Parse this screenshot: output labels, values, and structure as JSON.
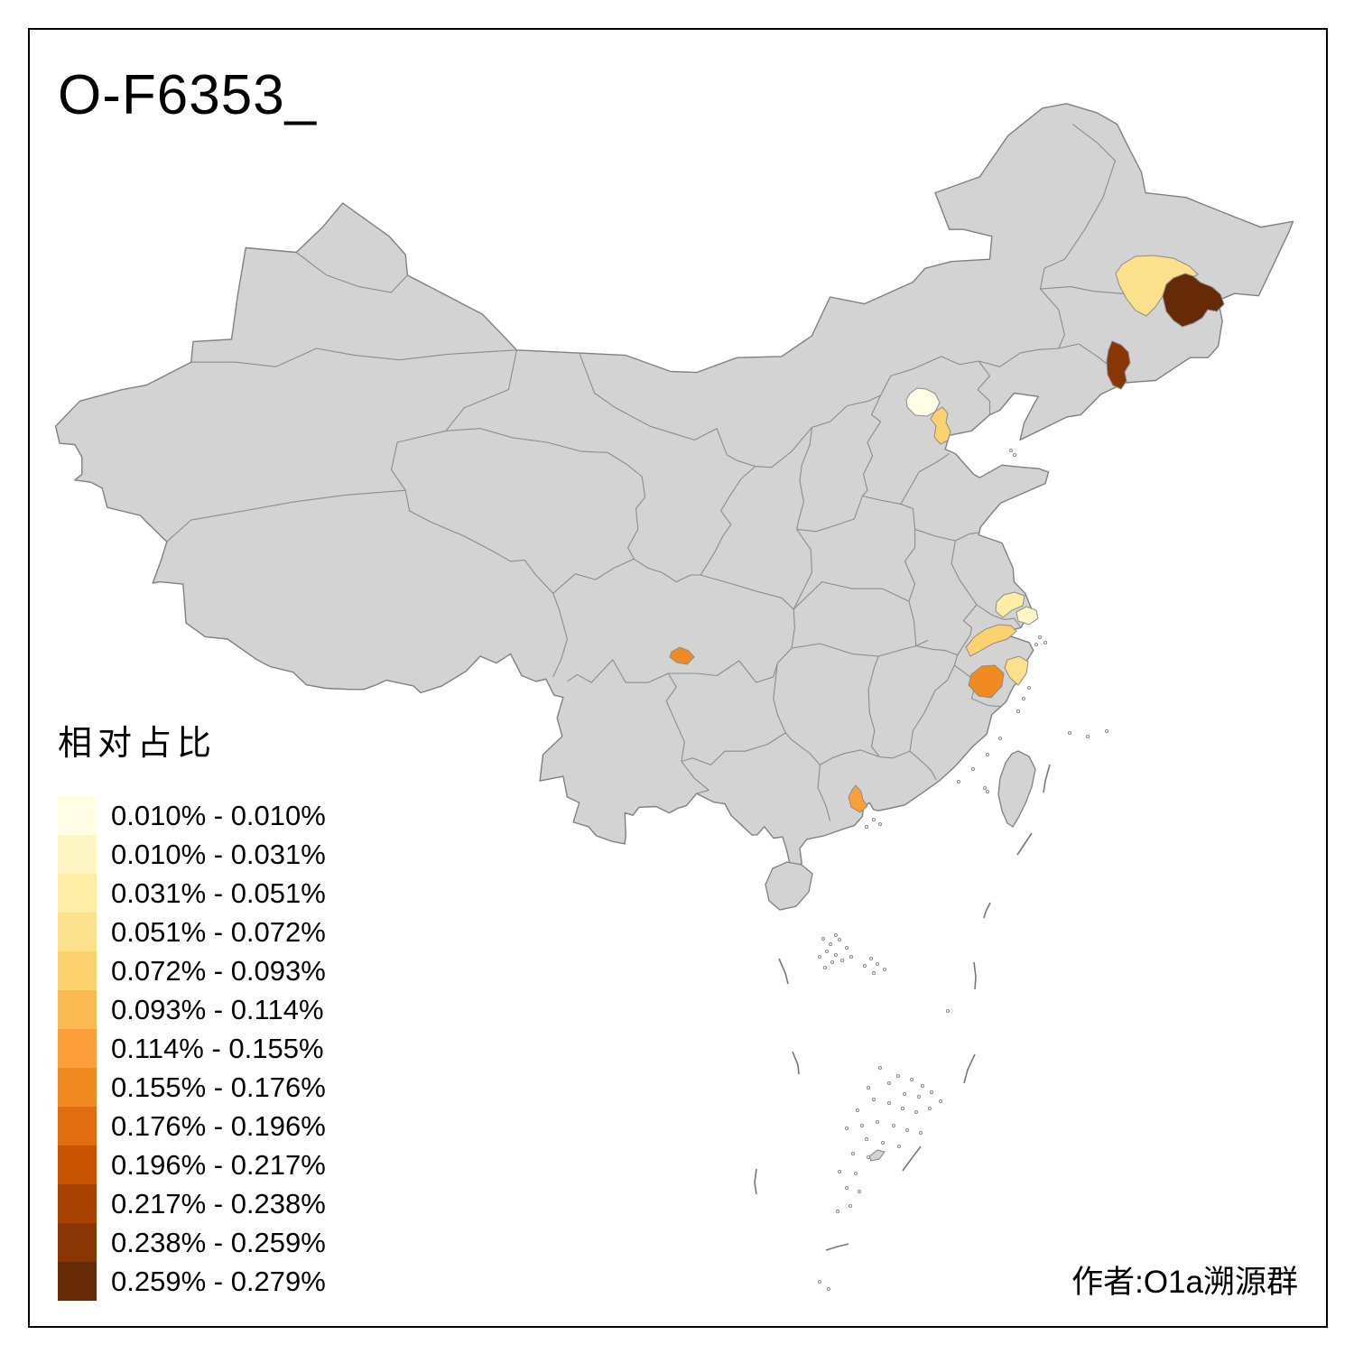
{
  "title": "O-F6353_",
  "attribution": "作者:O1a溯源群",
  "legend": {
    "title": "相对占比",
    "items": [
      {
        "label": "0.010% - 0.010%",
        "color": "#FFFDE3"
      },
      {
        "label": "0.010% - 0.031%",
        "color": "#FFF6C6"
      },
      {
        "label": "0.031% - 0.051%",
        "color": "#FEEDA4"
      },
      {
        "label": "0.051% - 0.072%",
        "color": "#FCE18C"
      },
      {
        "label": "0.072% - 0.093%",
        "color": "#FCD26E"
      },
      {
        "label": "0.093% - 0.114%",
        "color": "#FCBB52"
      },
      {
        "label": "0.114% - 0.155%",
        "color": "#FC9F3B"
      },
      {
        "label": "0.155% - 0.176%",
        "color": "#F28A22"
      },
      {
        "label": "0.176% - 0.196%",
        "color": "#E06E10"
      },
      {
        "label": "0.196% - 0.217%",
        "color": "#C95502"
      },
      {
        "label": "0.217% - 0.238%",
        "color": "#A84203"
      },
      {
        "label": "0.238% - 0.259%",
        "color": "#8A3504"
      },
      {
        "label": "0.259% - 0.279%",
        "color": "#672A06"
      }
    ]
  },
  "map": {
    "colors": {
      "land_fill": "#D3D3D3",
      "coast_stroke": "#808080",
      "interior_stroke": "#8C8C8C",
      "sea_fill": "#FFFFFF",
      "frame_color": "#000000"
    },
    "regions": [
      {
        "id": "beijing",
        "color": "#FFFDE3",
        "value_range": "0.010% - 0.010%"
      },
      {
        "id": "shanghai-area",
        "color": "#FFF6C6",
        "value_range": "0.010% - 0.031%"
      },
      {
        "id": "jiangsu-coastal",
        "color": "#FEEDA4",
        "value_range": "0.031% - 0.051%"
      },
      {
        "id": "heilongjiang-central",
        "color": "#FCE18C",
        "value_range": "0.051% - 0.072%"
      },
      {
        "id": "zhejiang-east",
        "color": "#FCE18C",
        "value_range": "0.051% - 0.072%"
      },
      {
        "id": "tianjin",
        "color": "#FCD26E",
        "value_range": "0.072% - 0.093%"
      },
      {
        "id": "zhejiang-north",
        "color": "#FCD26E",
        "value_range": "0.072% - 0.093%"
      },
      {
        "id": "guangdong-central",
        "color": "#FC9F3B",
        "value_range": "0.114% - 0.155%"
      },
      {
        "id": "sichuan-south",
        "color": "#F28A22",
        "value_range": "0.155% - 0.176%"
      },
      {
        "id": "zhejiang-central",
        "color": "#F28A22",
        "value_range": "0.155% - 0.176%"
      },
      {
        "id": "jilin-east",
        "color": "#8A3504",
        "value_range": "0.238% - 0.259%"
      },
      {
        "id": "heilongjiang-east",
        "color": "#672A06",
        "value_range": "0.259% - 0.279%"
      }
    ]
  }
}
